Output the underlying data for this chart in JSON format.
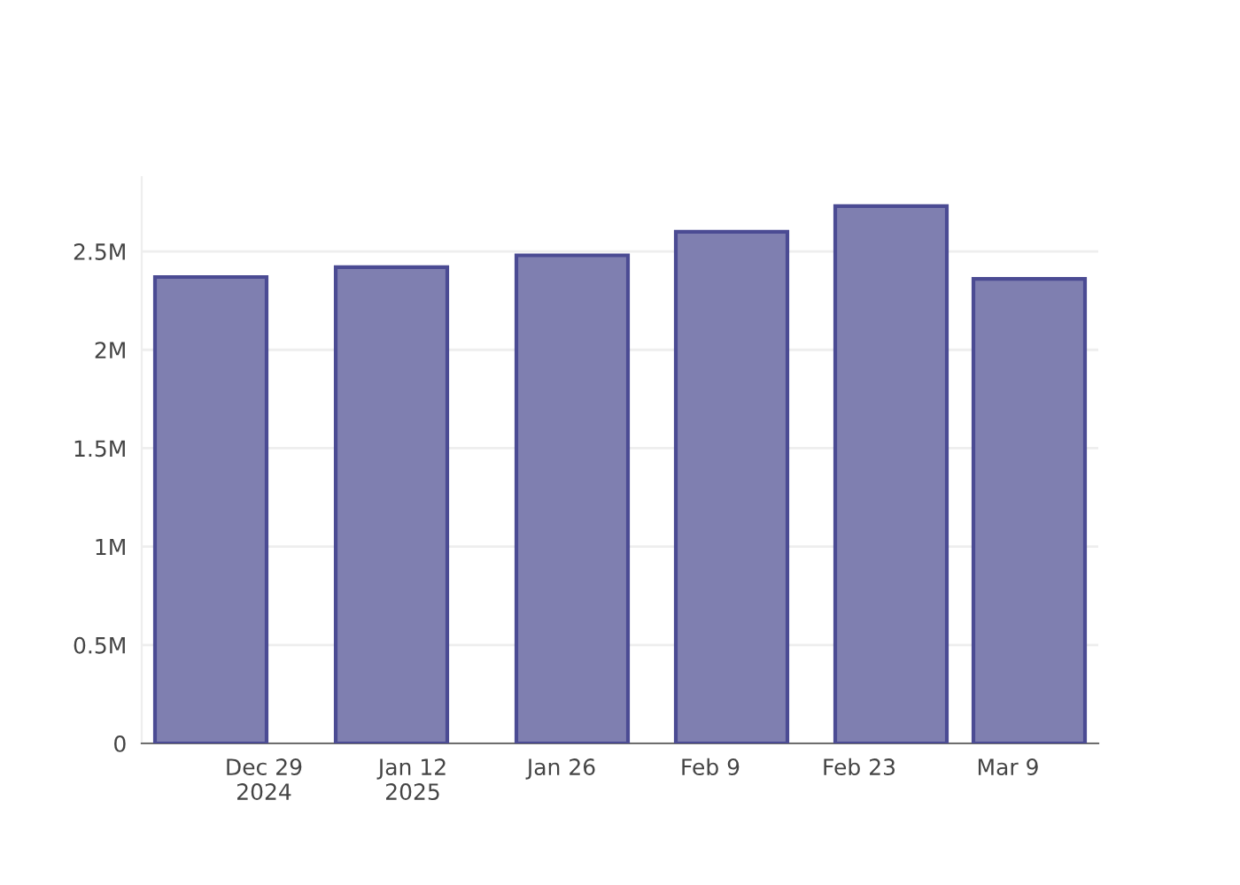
{
  "chart_data": {
    "type": "bar",
    "x": [
      "2024-12-24",
      "2025-01-10",
      "2025-01-27",
      "2025-02-11",
      "2025-02-26",
      "2025-03-11"
    ],
    "values": [
      2370000,
      2420000,
      2480000,
      2600000,
      2730000,
      2360000
    ],
    "color": "#7f7fb0",
    "xlim": [
      "2024-12-17T12:00",
      "2025-03-17T12:00"
    ],
    "xticks": [
      {
        "value": "2024-12-29",
        "label": "Dec 29\n2024"
      },
      {
        "value": "2025-01-12",
        "label": "Jan 12\n2025"
      },
      {
        "value": "2025-01-26",
        "label": "Jan 26"
      },
      {
        "value": "2025-02-09",
        "label": "Feb 9"
      },
      {
        "value": "2025-02-23",
        "label": "Feb 23"
      },
      {
        "value": "2025-03-09",
        "label": "Mar 9"
      }
    ],
    "yticks": [
      0,
      {
        "value": 500000,
        "label": "0.5M"
      },
      {
        "value": 1000000,
        "label": "1M"
      },
      {
        "value": 1500000,
        "label": "1.5M"
      },
      {
        "value": 2000000,
        "label": "2M"
      },
      {
        "value": 2500000,
        "label": "2.5M"
      }
    ],
    "ylim": [
      0,
      2878000
    ],
    "grid": "y"
  }
}
